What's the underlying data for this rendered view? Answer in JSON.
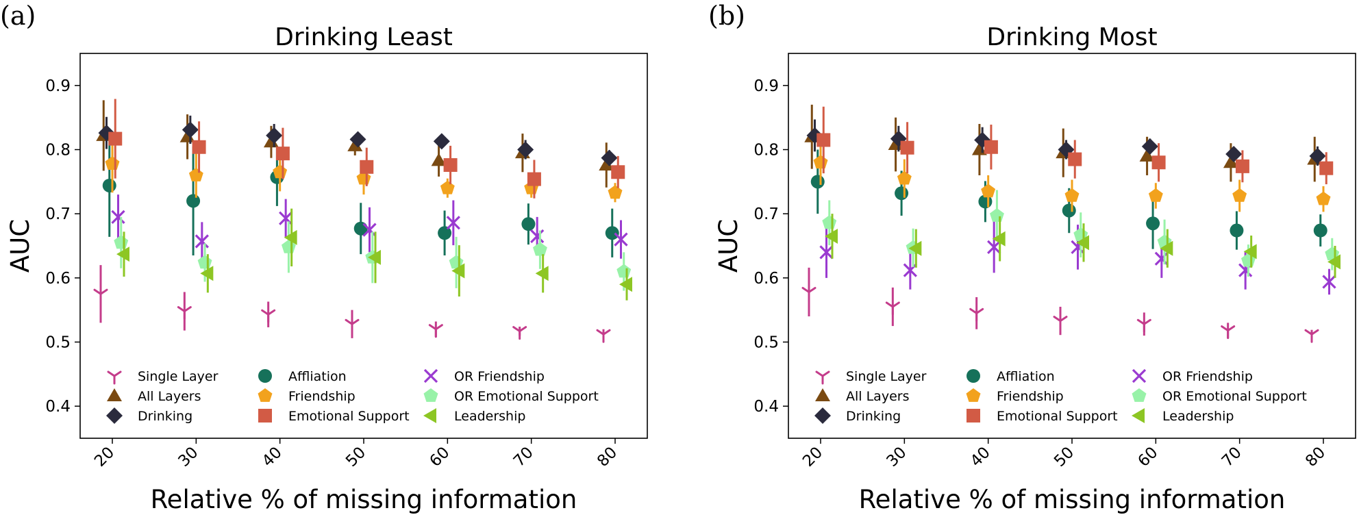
{
  "panel_letters": [
    "(a)",
    "(b)"
  ],
  "chart_data": [
    {
      "type": "scatter",
      "variant": "point-with-error-bars",
      "title": "Drinking Least",
      "xlabel": "Relative % of missing information",
      "ylabel": "AUC",
      "x": [
        20,
        30,
        40,
        50,
        60,
        70,
        80
      ],
      "x_tick_labels": [
        "20",
        "30",
        "40",
        "50",
        "60",
        "70",
        "80"
      ],
      "ylim": [
        0.35,
        0.95
      ],
      "y_ticks": [
        0.4,
        0.5,
        0.6,
        0.7,
        0.8,
        0.9
      ],
      "y_tick_labels": [
        "0.4",
        "0.5",
        "0.6",
        "0.7",
        "0.8",
        "0.9"
      ],
      "legend_position": "lower-center",
      "series": [
        {
          "name": "Single Layer",
          "marker": "tri-down",
          "color": "#c43c8b",
          "values": [
            0.575,
            0.548,
            0.543,
            0.528,
            0.52,
            0.517,
            0.512
          ],
          "errors": [
            0.045,
            0.03,
            0.02,
            0.022,
            0.012,
            0.007,
            0.008
          ]
        },
        {
          "name": "All Layers",
          "marker": "triangle-up",
          "color": "#7a4a12",
          "values": [
            0.822,
            0.82,
            0.812,
            0.806,
            0.783,
            0.795,
            0.776
          ],
          "errors": [
            0.055,
            0.035,
            0.025,
            0.015,
            0.025,
            0.03,
            0.035
          ]
        },
        {
          "name": "Drinking",
          "marker": "diamond",
          "color": "#2b2b3d",
          "values": [
            0.826,
            0.831,
            0.822,
            0.816,
            0.813,
            0.8,
            0.787
          ],
          "errors": [
            0.025,
            0.022,
            0.018,
            0.008,
            0.01,
            0.015,
            0.012
          ]
        },
        {
          "name": "Affliation",
          "marker": "circle",
          "color": "#16715a",
          "values": [
            0.744,
            0.72,
            0.757,
            0.677,
            0.67,
            0.684,
            0.67
          ],
          "errors": [
            0.08,
            0.085,
            0.045,
            0.04,
            0.035,
            0.032,
            0.038
          ]
        },
        {
          "name": "Friendship",
          "marker": "pentagon",
          "color": "#f2a21d",
          "values": [
            0.778,
            0.76,
            0.765,
            0.755,
            0.74,
            0.74,
            0.733
          ],
          "errors": [
            0.045,
            0.035,
            0.03,
            0.025,
            0.015,
            0.015,
            0.015
          ]
        },
        {
          "name": "Emotional Support",
          "marker": "square",
          "color": "#d25b45",
          "values": [
            0.817,
            0.804,
            0.794,
            0.773,
            0.776,
            0.754,
            0.765
          ],
          "errors": [
            0.062,
            0.04,
            0.04,
            0.03,
            0.03,
            0.03,
            0.025
          ]
        },
        {
          "name": "OR Friendship",
          "marker": "x",
          "color": "#9a3ad0",
          "values": [
            0.695,
            0.657,
            0.693,
            0.675,
            0.686,
            0.665,
            0.66
          ],
          "errors": [
            0.035,
            0.03,
            0.03,
            0.035,
            0.035,
            0.03,
            0.03
          ]
        },
        {
          "name": "OR Emotional Support",
          "marker": "pentagon",
          "color": "#98f2a8",
          "values": [
            0.655,
            0.624,
            0.648,
            0.632,
            0.624,
            0.644,
            0.61
          ],
          "errors": [
            0.04,
            0.03,
            0.04,
            0.04,
            0.04,
            0.03,
            0.03
          ]
        },
        {
          "name": "Leadership",
          "marker": "triangle-left",
          "color": "#8dc624",
          "values": [
            0.637,
            0.607,
            0.663,
            0.632,
            0.611,
            0.607,
            0.59
          ],
          "errors": [
            0.035,
            0.03,
            0.045,
            0.04,
            0.04,
            0.03,
            0.025
          ]
        }
      ]
    },
    {
      "type": "scatter",
      "variant": "point-with-error-bars",
      "title": "Drinking Most",
      "xlabel": "Relative % of missing information",
      "ylabel": "AUC",
      "x": [
        20,
        30,
        40,
        50,
        60,
        70,
        80
      ],
      "x_tick_labels": [
        "20",
        "30",
        "40",
        "50",
        "60",
        "70",
        "80"
      ],
      "ylim": [
        0.35,
        0.95
      ],
      "y_ticks": [
        0.4,
        0.5,
        0.6,
        0.7,
        0.8,
        0.9
      ],
      "y_tick_labels": [
        "0.4",
        "0.5",
        "0.6",
        "0.7",
        "0.8",
        "0.9"
      ],
      "legend_position": "lower-center",
      "series": [
        {
          "name": "Single Layer",
          "marker": "tri-down",
          "color": "#c43c8b",
          "values": [
            0.578,
            0.555,
            0.545,
            0.533,
            0.528,
            0.518,
            0.512
          ],
          "errors": [
            0.038,
            0.03,
            0.025,
            0.022,
            0.018,
            0.012,
            0.007
          ]
        },
        {
          "name": "All Layers",
          "marker": "triangle-up",
          "color": "#7a4a12",
          "values": [
            0.82,
            0.808,
            0.8,
            0.795,
            0.79,
            0.78,
            0.785
          ],
          "errors": [
            0.05,
            0.042,
            0.04,
            0.038,
            0.03,
            0.03,
            0.035
          ]
        },
        {
          "name": "Drinking",
          "marker": "diamond",
          "color": "#2b2b3d",
          "values": [
            0.822,
            0.817,
            0.815,
            0.8,
            0.805,
            0.793,
            0.79
          ],
          "errors": [
            0.025,
            0.02,
            0.02,
            0.015,
            0.012,
            0.01,
            0.015
          ]
        },
        {
          "name": "Affliation",
          "marker": "circle",
          "color": "#16715a",
          "values": [
            0.75,
            0.732,
            0.719,
            0.705,
            0.685,
            0.674,
            0.674
          ],
          "errors": [
            0.05,
            0.035,
            0.032,
            0.035,
            0.04,
            0.03,
            0.025
          ]
        },
        {
          "name": "Friendship",
          "marker": "pentagon",
          "color": "#f2a21d",
          "values": [
            0.78,
            0.755,
            0.735,
            0.728,
            0.728,
            0.728,
            0.723
          ],
          "errors": [
            0.035,
            0.03,
            0.025,
            0.025,
            0.02,
            0.025,
            0.02
          ]
        },
        {
          "name": "Emotional Support",
          "marker": "square",
          "color": "#d25b45",
          "values": [
            0.815,
            0.803,
            0.804,
            0.785,
            0.78,
            0.774,
            0.771
          ],
          "errors": [
            0.052,
            0.04,
            0.035,
            0.03,
            0.03,
            0.025,
            0.025
          ]
        },
        {
          "name": "OR Friendship",
          "marker": "x",
          "color": "#9a3ad0",
          "values": [
            0.64,
            0.612,
            0.648,
            0.648,
            0.63,
            0.612,
            0.594
          ],
          "errors": [
            0.04,
            0.03,
            0.04,
            0.035,
            0.03,
            0.03,
            0.02
          ]
        },
        {
          "name": "OR Emotional Support",
          "marker": "pentagon",
          "color": "#98f2a8",
          "values": [
            0.686,
            0.647,
            0.697,
            0.667,
            0.656,
            0.627,
            0.637
          ],
          "errors": [
            0.035,
            0.03,
            0.04,
            0.035,
            0.035,
            0.025,
            0.025
          ]
        },
        {
          "name": "Leadership",
          "marker": "triangle-left",
          "color": "#8dc624",
          "values": [
            0.665,
            0.646,
            0.661,
            0.655,
            0.646,
            0.641,
            0.625
          ],
          "errors": [
            0.035,
            0.03,
            0.035,
            0.03,
            0.03,
            0.025,
            0.025
          ]
        }
      ]
    }
  ]
}
